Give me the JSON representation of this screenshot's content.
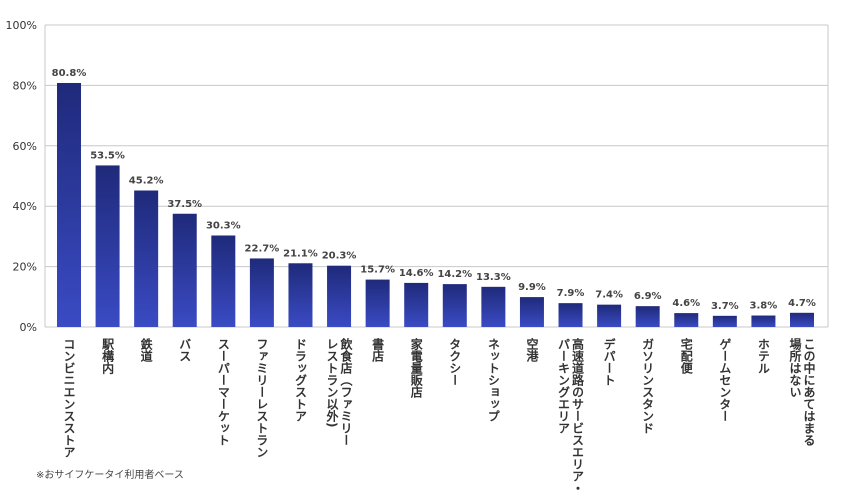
{
  "chart_data": {
    "type": "bar",
    "ylim": [
      0,
      100
    ],
    "y_ticks": [
      0,
      20,
      40,
      60,
      80,
      100
    ],
    "y_tick_labels": [
      "0%",
      "20%",
      "40%",
      "60%",
      "80%",
      "100%"
    ],
    "grid": true,
    "bar_color_top": "#1f2a7a",
    "bar_color_bottom": "#3a4bc4",
    "categories": [
      [
        "コンビニエンスストア"
      ],
      [
        "駅構内"
      ],
      [
        "鉄道"
      ],
      [
        "バス"
      ],
      [
        "スーパーマーケット"
      ],
      [
        "ファミリーレストラン"
      ],
      [
        "ドラッグストア"
      ],
      [
        "レストラン以外)",
        "飲食店（ファミリー"
      ],
      [
        "書店"
      ],
      [
        "家電量販店"
      ],
      [
        "タクシー"
      ],
      [
        "ネットショップ"
      ],
      [
        "空港"
      ],
      [
        "パーキングエリア",
        "高速道路のサービスエリア・"
      ],
      [
        "デパート"
      ],
      [
        "ガソリンスタンド"
      ],
      [
        "宅配便"
      ],
      [
        "ゲームセンター"
      ],
      [
        "ホテル"
      ],
      [
        "場所はない",
        "この中にあてはまる"
      ]
    ],
    "values": [
      80.8,
      53.5,
      45.2,
      37.5,
      30.3,
      22.7,
      21.1,
      20.3,
      15.7,
      14.6,
      14.2,
      13.3,
      9.9,
      7.9,
      7.4,
      6.9,
      4.6,
      3.7,
      3.8,
      4.7
    ],
    "value_labels": [
      "80.8%",
      "53.5%",
      "45.2%",
      "37.5%",
      "30.3%",
      "22.7%",
      "21.1%",
      "20.3%",
      "15.7%",
      "14.6%",
      "14.2%",
      "13.3%",
      "9.9%",
      "7.9%",
      "7.4%",
      "6.9%",
      "4.6%",
      "3.7%",
      "3.8%",
      "4.7%"
    ]
  },
  "footnote": "※おサイフケータイ利用者ベース"
}
